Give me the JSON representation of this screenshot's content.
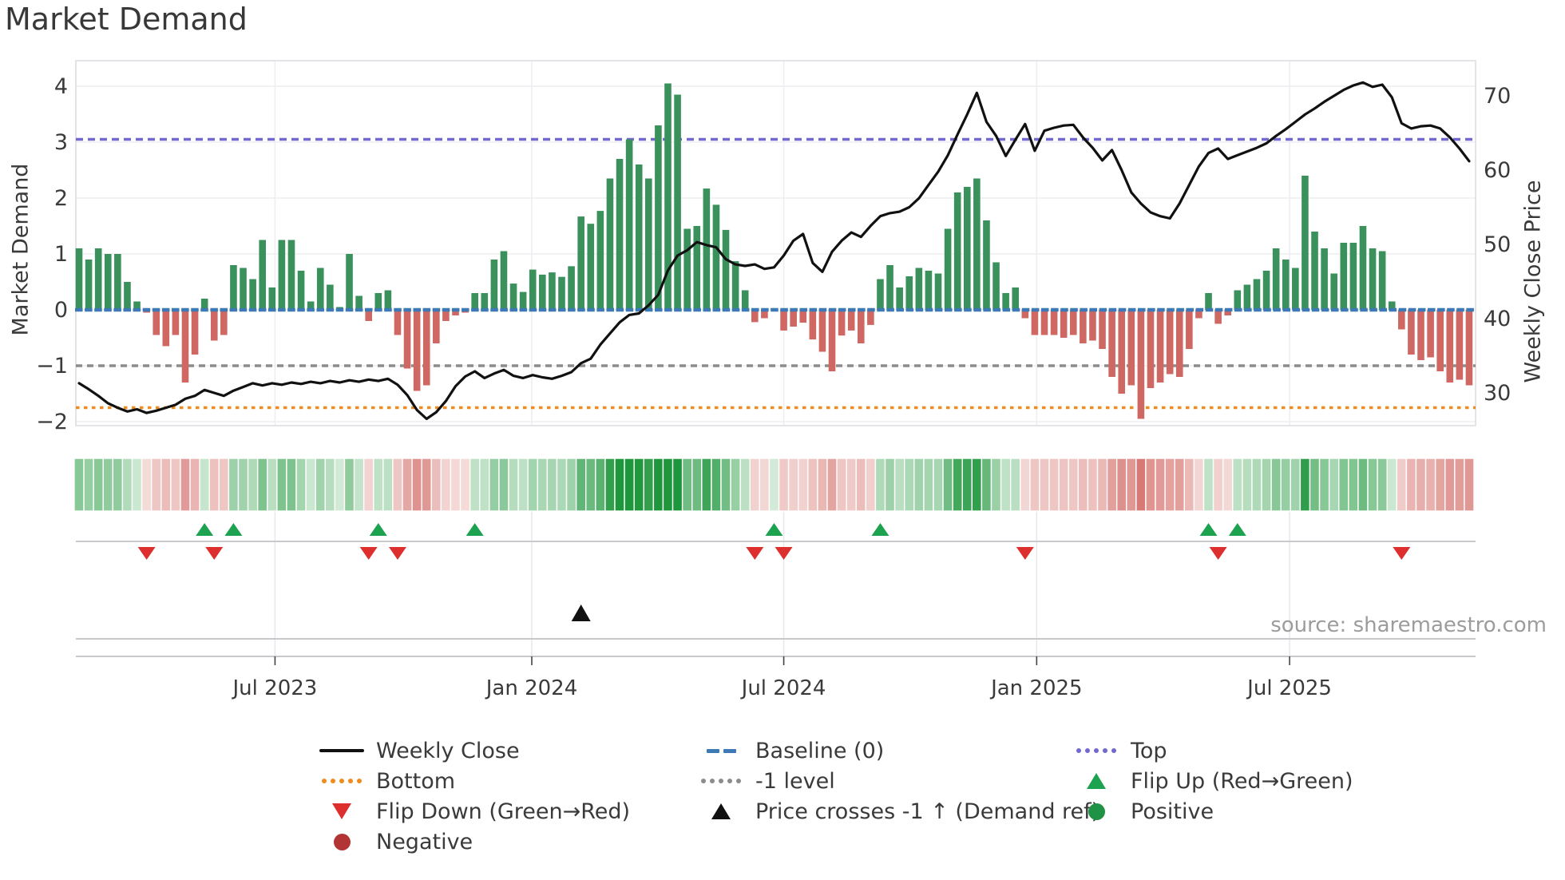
{
  "title": "Market Demand",
  "source": "source: sharemaestro.com",
  "chart_data": {
    "type": "composite",
    "subtypes": [
      "bar",
      "line",
      "heatmap",
      "markers"
    ],
    "title": "Market Demand",
    "x_axis": {
      "tick_labels": [
        "Jul 2023",
        "Jan 2024",
        "Jul 2024",
        "Jan 2025",
        "Jul 2025"
      ],
      "tick_weeks": [
        20.3,
        46.9,
        73.0,
        99.2,
        125.4
      ],
      "n_weeks": 145
    },
    "left_axis": {
      "label": "Market Demand",
      "tick_values": [
        -2,
        -1,
        0,
        1,
        2,
        3,
        4
      ],
      "tick_labels": [
        "−2",
        "−1",
        "0",
        "1",
        "2",
        "3",
        "4"
      ],
      "range": [
        -2.25,
        4.45
      ]
    },
    "right_axis": {
      "label": "Weekly Close Price",
      "tick_values": [
        30,
        40,
        50,
        60,
        70
      ],
      "tick_labels": [
        "30",
        "40",
        "50",
        "60",
        "70"
      ],
      "range": [
        25.6,
        74.7
      ]
    },
    "reference_lines": {
      "baseline": 0,
      "top": 3.05,
      "minus1": -1,
      "bottom": -1.75
    },
    "series": [
      {
        "name": "Market Demand",
        "type": "bar",
        "values": [
          1.1,
          0.9,
          1.1,
          1.0,
          1.0,
          0.5,
          0.15,
          -0.05,
          -0.45,
          -0.65,
          -0.45,
          -1.3,
          -0.8,
          0.2,
          -0.55,
          -0.45,
          0.8,
          0.75,
          0.55,
          1.25,
          0.4,
          1.25,
          1.25,
          0.7,
          0.15,
          0.75,
          0.45,
          0.05,
          1.0,
          0.25,
          -0.2,
          0.3,
          0.35,
          -0.45,
          -1.05,
          -1.45,
          -1.35,
          -0.6,
          -0.2,
          -0.1,
          -0.05,
          0.3,
          0.3,
          0.9,
          1.05,
          0.47,
          0.32,
          0.72,
          0.63,
          0.67,
          0.59,
          0.78,
          1.67,
          1.54,
          1.77,
          2.35,
          2.7,
          3.05,
          2.6,
          2.35,
          3.3,
          4.05,
          3.85,
          1.45,
          1.5,
          2.17,
          1.88,
          1.43,
          0.87,
          0.35,
          -0.22,
          -0.15,
          0.03,
          -0.37,
          -0.3,
          -0.23,
          -0.53,
          -0.75,
          -1.1,
          -0.46,
          -0.37,
          -0.6,
          -0.27,
          0.55,
          0.8,
          0.4,
          0.6,
          0.75,
          0.7,
          0.65,
          1.45,
          2.1,
          2.2,
          2.35,
          1.6,
          0.85,
          0.3,
          0.4,
          -0.15,
          -0.45,
          -0.45,
          -0.45,
          -0.5,
          -0.45,
          -0.6,
          -0.55,
          -0.7,
          -1.2,
          -1.5,
          -1.35,
          -1.95,
          -1.4,
          -1.3,
          -1.15,
          -1.2,
          -0.7,
          -0.15,
          0.3,
          -0.25,
          -0.1,
          0.35,
          0.45,
          0.55,
          0.7,
          1.1,
          0.9,
          0.75,
          2.4,
          1.4,
          1.1,
          0.65,
          1.2,
          1.2,
          1.5,
          1.1,
          1.05,
          0.15,
          -0.35,
          -0.8,
          -0.9,
          -0.85,
          -1.1,
          -1.3,
          -1.25,
          -1.35
        ]
      },
      {
        "name": "Weekly Close",
        "type": "line",
        "values": [
          31.3,
          30.5,
          29.6,
          28.6,
          28.0,
          27.5,
          27.8,
          27.3,
          27.6,
          28.0,
          28.4,
          29.2,
          29.6,
          30.4,
          30.0,
          29.6,
          30.3,
          30.8,
          31.3,
          31.0,
          31.3,
          31.1,
          31.4,
          31.2,
          31.5,
          31.3,
          31.6,
          31.4,
          31.7,
          31.5,
          31.8,
          31.6,
          31.9,
          31.1,
          29.7,
          27.7,
          26.5,
          27.4,
          28.9,
          30.9,
          32.2,
          32.9,
          32.0,
          32.6,
          33.1,
          32.3,
          32.0,
          32.4,
          32.1,
          31.9,
          32.3,
          32.8,
          34.0,
          34.6,
          36.5,
          38.0,
          39.5,
          40.5,
          40.7,
          41.8,
          43.2,
          46.5,
          48.5,
          49.2,
          50.3,
          49.9,
          49.6,
          48.0,
          47.3,
          47.1,
          47.3,
          46.7,
          46.9,
          48.5,
          50.5,
          51.4,
          47.5,
          46.3,
          49.0,
          50.5,
          51.6,
          51.0,
          52.5,
          53.8,
          54.2,
          54.4,
          55.0,
          56.2,
          58.0,
          59.8,
          62.0,
          64.8,
          67.5,
          70.4,
          66.5,
          64.6,
          61.9,
          64.1,
          66.2,
          62.6,
          65.3,
          65.7,
          66.0,
          66.1,
          64.4,
          63.0,
          61.3,
          62.7,
          60.0,
          57.0,
          55.5,
          54.3,
          53.8,
          53.5,
          55.5,
          58.0,
          60.5,
          62.3,
          62.9,
          61.5,
          62.0,
          62.5,
          63.0,
          63.6,
          64.6,
          65.5,
          66.5,
          67.5,
          68.3,
          69.2,
          70.0,
          70.8,
          71.4,
          71.8,
          71.2,
          71.5,
          69.8,
          66.3,
          65.6,
          65.9,
          66.0,
          65.6,
          64.4,
          62.9,
          61.2
        ]
      }
    ],
    "markers": {
      "flip_up_weeks": [
        13,
        16,
        31,
        41,
        72,
        83,
        117,
        120
      ],
      "flip_down_weeks": [
        7,
        14,
        30,
        33,
        70,
        73,
        98,
        118,
        137
      ],
      "price_cross_weeks": [
        52
      ]
    },
    "colors": {
      "bar_positive": "#3a915b",
      "bar_negative": "#cf6863",
      "line": "#111111",
      "baseline": "#3d7ab5",
      "top": "#7268cf",
      "bottom": "#f08c1e",
      "minus1": "#8c8c8c",
      "flip_up": "#1da350",
      "flip_down": "#dd2f2e",
      "price_cross": "#111111",
      "grid": "#ededf2",
      "spine": "#dcdce1",
      "panel_line": "#c9c9cd",
      "tick_text": "#3a3a3a"
    },
    "legend_position": "bottom",
    "grid": true
  },
  "legend": {
    "columns": [
      {
        "items": [
          {
            "name": "weekly-close",
            "symbol": "line",
            "color": "#111111",
            "label": "Weekly Close"
          },
          {
            "name": "bottom",
            "symbol": "dots",
            "color": "#f08c1e",
            "label": "Bottom"
          },
          {
            "name": "flip-down",
            "symbol": "triangle-down",
            "color": "#dd2f2e",
            "label": "Flip Down (Green→Red)"
          },
          {
            "name": "negative",
            "symbol": "circle",
            "color": "#b23434",
            "label": "Negative"
          }
        ]
      },
      {
        "items": [
          {
            "name": "baseline",
            "symbol": "dashes",
            "color": "#3d7ab5",
            "label": "Baseline (0)"
          },
          {
            "name": "minus1-level",
            "symbol": "dots",
            "color": "#8c8c8c",
            "label": "-1 level"
          },
          {
            "name": "price-crosses",
            "symbol": "triangle-up",
            "color": "#111111",
            "label": "Price crosses -1 ↑ (Demand ref)"
          }
        ]
      },
      {
        "items": [
          {
            "name": "top",
            "symbol": "dots",
            "color": "#7268cf",
            "label": "Top"
          },
          {
            "name": "flip-up",
            "symbol": "triangle-up",
            "color": "#1da350",
            "label": "Flip Up (Red→Green)"
          },
          {
            "name": "positive",
            "symbol": "circle",
            "color": "#1f9245",
            "label": "Positive"
          }
        ]
      }
    ]
  }
}
